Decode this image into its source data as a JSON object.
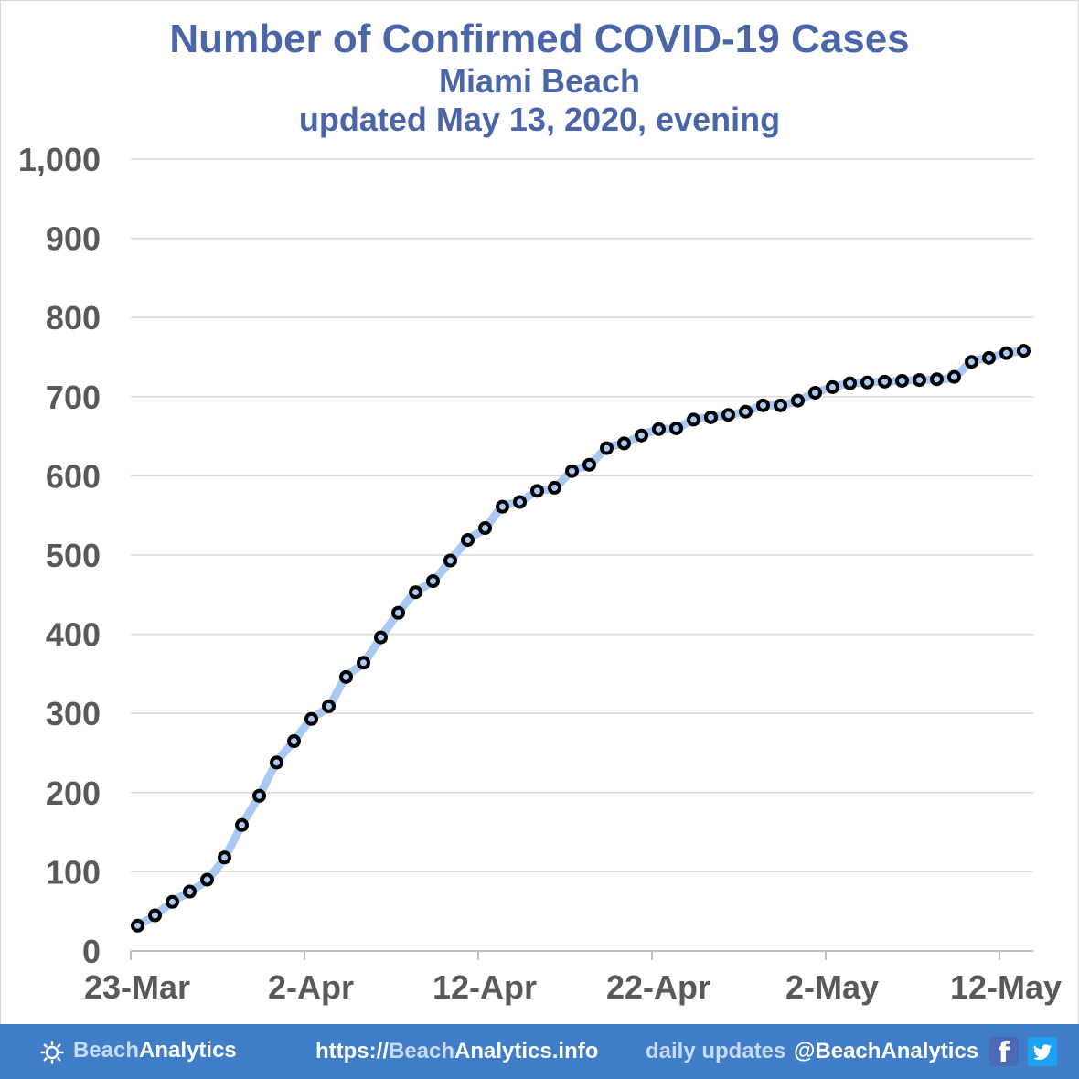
{
  "title": "Number of Confirmed COVID-19 Cases",
  "subtitle": "Miami Beach",
  "updated": "updated May 13, 2020, evening",
  "footer": {
    "brand_light": "BeachAnalytics",
    "url_prefix": "https://",
    "url_brand": "Beach",
    "url_rest": "Analytics.info",
    "updates_label": "daily updates",
    "handle": "@BeachAnalytics",
    "facebook_icon": "facebook-icon",
    "twitter_icon": "twitter-icon",
    "logo_icon": "sun-icon"
  },
  "colors": {
    "title": "#4a65a8",
    "line": "#a9c8f4",
    "marker": "#000000",
    "grid": "#d9d9d9",
    "axis_text": "#595959",
    "footer_bg": "#3f7dc7"
  },
  "chart_data": {
    "type": "line",
    "title": "Number of Confirmed COVID-19 Cases",
    "xlabel": "",
    "ylabel": "",
    "ylim": [
      0,
      1000
    ],
    "grid": true,
    "y_ticks": [
      "0",
      "100",
      "200",
      "300",
      "400",
      "500",
      "600",
      "700",
      "800",
      "900",
      "1,000"
    ],
    "x_ticks": [
      "23-Mar",
      "2-Apr",
      "12-Apr",
      "22-Apr",
      "2-May",
      "12-May"
    ],
    "x_start": "2020-03-23",
    "x": [
      "2020-03-23",
      "2020-03-24",
      "2020-03-25",
      "2020-03-26",
      "2020-03-27",
      "2020-03-28",
      "2020-03-29",
      "2020-03-30",
      "2020-03-31",
      "2020-04-01",
      "2020-04-02",
      "2020-04-03",
      "2020-04-04",
      "2020-04-05",
      "2020-04-06",
      "2020-04-07",
      "2020-04-08",
      "2020-04-09",
      "2020-04-10",
      "2020-04-11",
      "2020-04-12",
      "2020-04-13",
      "2020-04-14",
      "2020-04-15",
      "2020-04-16",
      "2020-04-17",
      "2020-04-18",
      "2020-04-19",
      "2020-04-20",
      "2020-04-21",
      "2020-04-22",
      "2020-04-23",
      "2020-04-24",
      "2020-04-25",
      "2020-04-26",
      "2020-04-27",
      "2020-04-28",
      "2020-04-29",
      "2020-04-30",
      "2020-05-01",
      "2020-05-02",
      "2020-05-03",
      "2020-05-04",
      "2020-05-05",
      "2020-05-06",
      "2020-05-07",
      "2020-05-08",
      "2020-05-09",
      "2020-05-10",
      "2020-05-11",
      "2020-05-12",
      "2020-05-13"
    ],
    "series": [
      {
        "values": [
          32,
          45,
          62,
          75,
          90,
          118,
          159,
          196,
          238,
          265,
          293,
          309,
          346,
          364,
          396,
          427,
          453,
          467,
          493,
          519,
          534,
          561,
          567,
          581,
          585,
          606,
          614,
          635,
          641,
          651,
          659,
          660,
          671,
          674,
          677,
          681,
          689,
          689,
          695,
          705,
          712,
          717,
          718,
          719,
          720,
          721,
          722,
          725,
          744,
          749,
          755,
          758
        ]
      }
    ]
  }
}
